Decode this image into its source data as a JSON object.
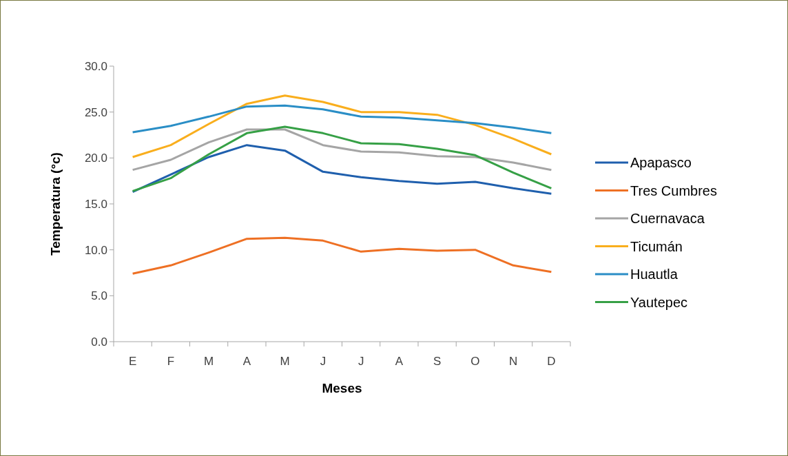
{
  "chart_data": {
    "type": "line",
    "xlabel": "Meses",
    "ylabel": "Temperatura (°c)",
    "categories": [
      "E",
      "F",
      "M",
      "A",
      "M",
      "J",
      "J",
      "A",
      "S",
      "O",
      "N",
      "D"
    ],
    "ylim": [
      0,
      30
    ],
    "yticks": [
      {
        "value": 0,
        "label": "0.0"
      },
      {
        "value": 5,
        "label": "5.0"
      },
      {
        "value": 10,
        "label": "10.0"
      },
      {
        "value": 15,
        "label": "15.0"
      },
      {
        "value": 20,
        "label": "20.0"
      },
      {
        "value": 25,
        "label": "25.0"
      },
      {
        "value": 30,
        "label": "30.0"
      }
    ],
    "grid": false,
    "legend": "right",
    "marker": "none",
    "line_style": "solid",
    "series": [
      {
        "name": "Apapasco",
        "color": "#1f5fad",
        "values": [
          16.3,
          18.2,
          20.1,
          21.4,
          20.8,
          18.5,
          17.9,
          17.5,
          17.2,
          17.4,
          16.7,
          16.1
        ]
      },
      {
        "name": "Tres Cumbres",
        "color": "#ee7024",
        "values": [
          7.4,
          8.3,
          9.7,
          11.2,
          11.3,
          11.0,
          9.8,
          10.1,
          9.9,
          10.0,
          8.3,
          7.6
        ]
      },
      {
        "name": "Cuernavaca",
        "color": "#a5a5a5",
        "values": [
          18.7,
          19.8,
          21.7,
          23.1,
          23.1,
          21.4,
          20.7,
          20.6,
          20.2,
          20.1,
          19.5,
          18.7
        ]
      },
      {
        "name": "Ticumán",
        "color": "#f9ae1d",
        "values": [
          20.1,
          21.4,
          23.7,
          25.9,
          26.8,
          26.1,
          25.0,
          25.0,
          24.7,
          23.6,
          22.1,
          20.4
        ]
      },
      {
        "name": "Huautla",
        "color": "#2a8ec6",
        "values": [
          22.8,
          23.5,
          24.5,
          25.6,
          25.7,
          25.3,
          24.5,
          24.4,
          24.1,
          23.8,
          23.3,
          22.7
        ]
      },
      {
        "name": "Yautepec",
        "color": "#36a046",
        "values": [
          16.4,
          17.8,
          20.4,
          22.7,
          23.4,
          22.7,
          21.6,
          21.5,
          21.0,
          20.3,
          18.4,
          16.7
        ]
      }
    ]
  }
}
